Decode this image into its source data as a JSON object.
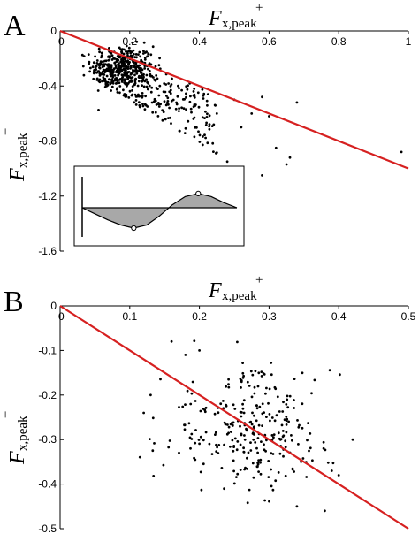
{
  "chart_data": [
    {
      "type": "scatter",
      "panel_label": "A",
      "xlabel": {
        "main": "F",
        "sub": "x,peak",
        "sup": "+"
      },
      "ylabel": {
        "main": "F",
        "sub": "x,peak",
        "sup": "−"
      },
      "xlim": [
        0,
        1
      ],
      "ylim": [
        -1.6,
        0
      ],
      "xticks": [
        "0",
        "0.2",
        "0.4",
        "0.6",
        "0.8",
        "1"
      ],
      "yticks": [
        "0",
        "-0.4",
        "-0.8",
        "-1.2",
        "-1.6"
      ],
      "x_axis_position": "top",
      "grid": false,
      "reference_line": {
        "color": "#d62020",
        "from": [
          0,
          0
        ],
        "to": [
          1,
          -1
        ]
      },
      "marker_color": "#000000",
      "cluster": {
        "n": 360,
        "x_center": 0.18,
        "x_sd": 0.045,
        "y_center": -0.26,
        "y_sd": 0.075
      },
      "spread": {
        "n": 260,
        "x_min": 0.1,
        "x_max": 0.45,
        "y_min": -0.2,
        "y_max": -0.95
      },
      "outliers": [
        {
          "x": 0.42,
          "y": -1.18
        },
        {
          "x": 0.98,
          "y": -0.88
        },
        {
          "x": 0.68,
          "y": -0.52
        },
        {
          "x": 0.58,
          "y": -0.48
        },
        {
          "x": 0.55,
          "y": -0.6
        },
        {
          "x": 0.6,
          "y": -0.62
        },
        {
          "x": 0.62,
          "y": -0.85
        },
        {
          "x": 0.65,
          "y": -0.97
        },
        {
          "x": 0.58,
          "y": -1.05
        },
        {
          "x": 0.52,
          "y": -0.7
        },
        {
          "x": 0.48,
          "y": -0.95
        },
        {
          "x": 0.5,
          "y": -0.5
        },
        {
          "x": 0.45,
          "y": -0.6
        },
        {
          "x": 0.66,
          "y": -0.92
        }
      ],
      "inset": {
        "description": "waveform with positive and negative lobes",
        "fill_color": "#a8a8a8",
        "waveform": [
          0,
          -0.3,
          -0.6,
          -0.85,
          -1.0,
          -0.85,
          -0.4,
          0.15,
          0.55,
          0.7,
          0.55,
          0.25,
          0
        ]
      }
    },
    {
      "type": "scatter",
      "panel_label": "B",
      "xlabel": {
        "main": "F",
        "sub": "x,peak",
        "sup": "+"
      },
      "ylabel": {
        "main": "F",
        "sub": "x,peak",
        "sup": "−"
      },
      "xlim": [
        0,
        0.5
      ],
      "ylim": [
        -0.5,
        0
      ],
      "xticks": [
        "0",
        "0.1",
        "0.2",
        "0.3",
        "0.4",
        "0.5"
      ],
      "yticks": [
        "0",
        "-0.1",
        "-0.2",
        "-0.3",
        "-0.4",
        "-0.5"
      ],
      "x_axis_position": "top",
      "grid": false,
      "reference_line": {
        "color": "#d62020",
        "from": [
          0,
          0
        ],
        "to": [
          0.5,
          -0.5
        ]
      },
      "marker_color": "#000000",
      "cluster": {
        "n": 290,
        "x_center": 0.27,
        "x_sd": 0.06,
        "y_center": -0.28,
        "y_sd": 0.065
      },
      "outliers": [
        {
          "x": 0.16,
          "y": -0.08
        },
        {
          "x": 0.2,
          "y": -0.1
        },
        {
          "x": 0.18,
          "y": -0.11
        },
        {
          "x": 0.38,
          "y": -0.46
        },
        {
          "x": 0.34,
          "y": -0.45
        },
        {
          "x": 0.4,
          "y": -0.38
        },
        {
          "x": 0.42,
          "y": -0.3
        },
        {
          "x": 0.13,
          "y": -0.2
        },
        {
          "x": 0.12,
          "y": -0.24
        },
        {
          "x": 0.39,
          "y": -0.37
        }
      ]
    }
  ]
}
